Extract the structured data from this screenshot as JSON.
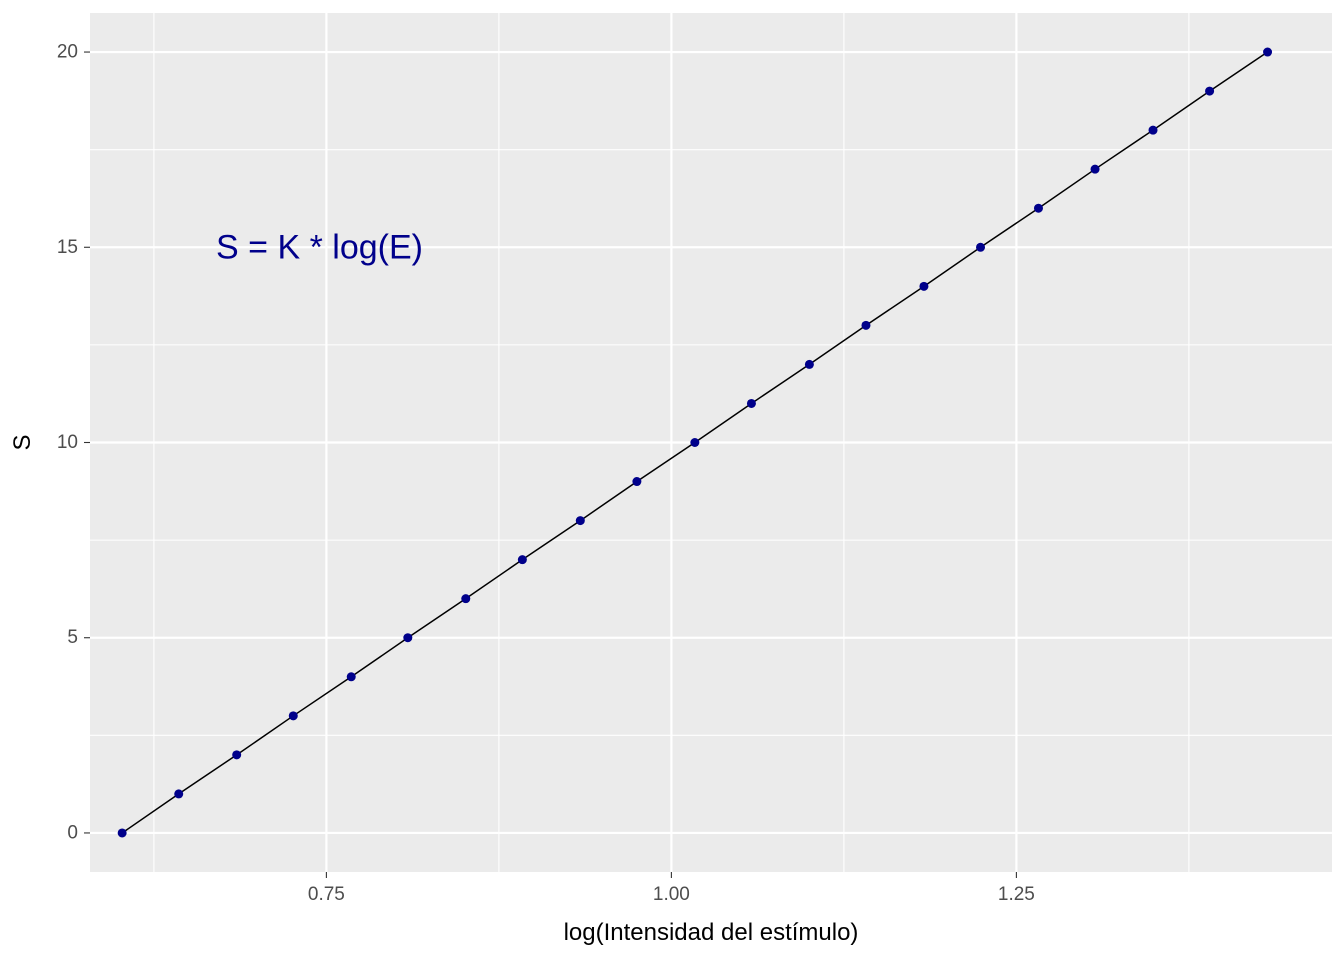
{
  "chart_data": {
    "type": "scatter",
    "xlabel": "log(Intensidad del estímulo)",
    "ylabel": "S",
    "annotation": {
      "text": "S = K * log(E)",
      "x": 0.745,
      "y": 15
    },
    "x_ticks": [
      0.75,
      1.0,
      1.25
    ],
    "x_tick_labels": [
      "0.75",
      "1.00",
      "1.25"
    ],
    "y_ticks": [
      0,
      5,
      10,
      15,
      20
    ],
    "y_tick_labels": [
      "0",
      "5",
      "10",
      "15",
      "20"
    ],
    "xlim": [
      0.5787,
      1.4787
    ],
    "ylim": [
      -1,
      21
    ],
    "grid": true,
    "line": true,
    "series": [
      {
        "x": [
          0.602,
          0.643,
          0.685,
          0.726,
          0.768,
          0.809,
          0.851,
          0.892,
          0.934,
          0.975,
          1.017,
          1.058,
          1.1,
          1.141,
          1.183,
          1.224,
          1.266,
          1.307,
          1.349,
          1.39,
          1.432
        ],
        "y": [
          0,
          1,
          2,
          3,
          4,
          5,
          6,
          7,
          8,
          9,
          10,
          11,
          12,
          13,
          14,
          15,
          16,
          17,
          18,
          19,
          20
        ]
      }
    ],
    "colors": {
      "panel": "#ebebeb",
      "grid": "#ffffff",
      "point": "#00008b",
      "line": "#000000",
      "annotation": "#00008b"
    }
  }
}
